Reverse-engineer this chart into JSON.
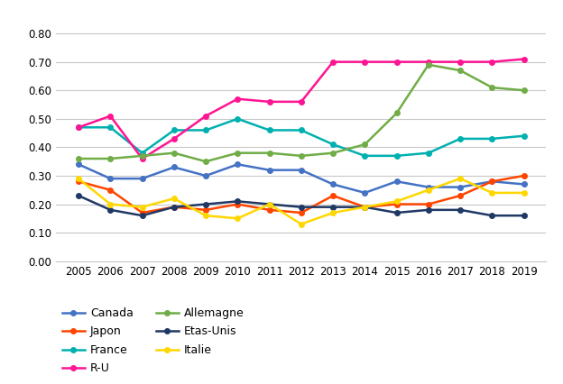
{
  "years": [
    2005,
    2006,
    2007,
    2008,
    2009,
    2010,
    2011,
    2012,
    2013,
    2014,
    2015,
    2016,
    2017,
    2018,
    2019
  ],
  "series": {
    "Canada": [
      0.34,
      0.29,
      0.29,
      0.33,
      0.3,
      0.34,
      0.32,
      0.32,
      0.27,
      0.24,
      0.28,
      0.26,
      0.26,
      0.28,
      0.27
    ],
    "Japon": [
      0.28,
      0.25,
      0.17,
      0.19,
      0.18,
      0.2,
      0.18,
      0.17,
      0.23,
      0.19,
      0.2,
      0.2,
      0.23,
      0.28,
      0.3
    ],
    "France": [
      0.47,
      0.47,
      0.38,
      0.46,
      0.46,
      0.5,
      0.46,
      0.46,
      0.41,
      0.37,
      0.37,
      0.38,
      0.43,
      0.43,
      0.44
    ],
    "R-U": [
      0.47,
      0.51,
      0.36,
      0.43,
      0.51,
      0.57,
      0.56,
      0.56,
      0.7,
      0.7,
      0.7,
      0.7,
      0.7,
      0.7,
      0.71
    ],
    "Allemagne": [
      0.36,
      0.36,
      0.37,
      0.38,
      0.35,
      0.38,
      0.38,
      0.37,
      0.38,
      0.41,
      0.52,
      0.69,
      0.67,
      0.61,
      0.6
    ],
    "Etas-Unis": [
      0.23,
      0.18,
      0.16,
      0.19,
      0.2,
      0.21,
      0.2,
      0.19,
      0.19,
      0.19,
      0.17,
      0.18,
      0.18,
      0.16,
      0.16
    ],
    "Italie": [
      0.29,
      0.2,
      0.19,
      0.22,
      0.16,
      0.15,
      0.2,
      0.13,
      0.17,
      0.19,
      0.21,
      0.25,
      0.29,
      0.24,
      0.24
    ]
  },
  "colors": {
    "Canada": "#4472C4",
    "Japon": "#FF4500",
    "France": "#00B0B0",
    "R-U": "#FF1493",
    "Allemagne": "#70AD47",
    "Etas-Unis": "#1F3864",
    "Italie": "#FFD700"
  },
  "ylim": [
    0.0,
    0.85
  ],
  "yticks": [
    0.0,
    0.1,
    0.2,
    0.3,
    0.4,
    0.5,
    0.6,
    0.7,
    0.8
  ],
  "legend_order": [
    "Canada",
    "Japon",
    "France",
    "R-U",
    "Allemagne",
    "Etas-Unis",
    "Italie"
  ],
  "legend_ncol": 2,
  "figsize": [
    6.24,
    4.26
  ],
  "dpi": 100
}
